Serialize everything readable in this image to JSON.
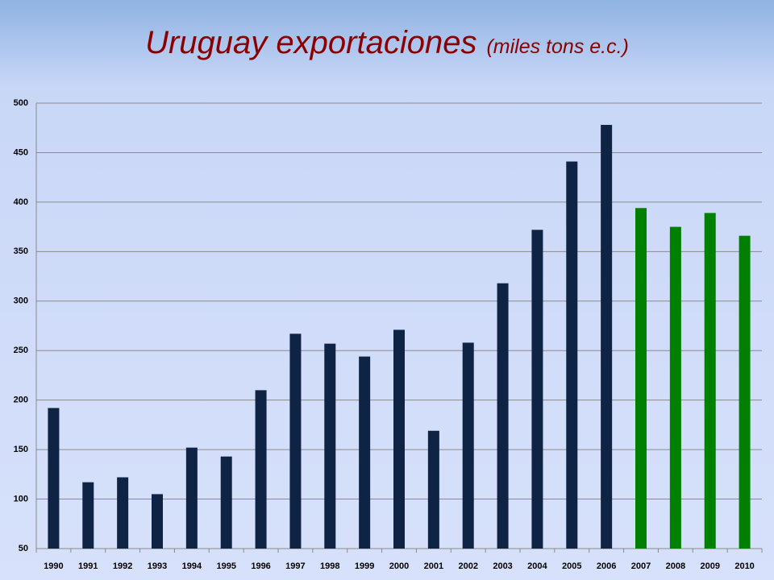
{
  "chart_data": {
    "type": "bar",
    "title": "Uruguay exportaciones",
    "subtitle": "(miles tons e.c.)",
    "categories": [
      "1990",
      "1991",
      "1992",
      "1993",
      "1994",
      "1995",
      "1996",
      "1997",
      "1998",
      "1999",
      "2000",
      "2001",
      "2002",
      "2003",
      "2004",
      "2005",
      "2006",
      "2007",
      "2008",
      "2009",
      "2010"
    ],
    "values": [
      192,
      117,
      122,
      105,
      152,
      143,
      210,
      267,
      257,
      244,
      271,
      169,
      258,
      318,
      372,
      441,
      478,
      394,
      375,
      389,
      366
    ],
    "colors": [
      "#0f2444",
      "#0f2444",
      "#0f2444",
      "#0f2444",
      "#0f2444",
      "#0f2444",
      "#0f2444",
      "#0f2444",
      "#0f2444",
      "#0f2444",
      "#0f2444",
      "#0f2444",
      "#0f2444",
      "#0f2444",
      "#0f2444",
      "#0f2444",
      "#0f2444",
      "#008000",
      "#008000",
      "#008000",
      "#008000"
    ],
    "ylim": [
      50,
      500
    ],
    "yticks": [
      50,
      100,
      150,
      200,
      250,
      300,
      350,
      400,
      450,
      500
    ],
    "grid": true
  }
}
